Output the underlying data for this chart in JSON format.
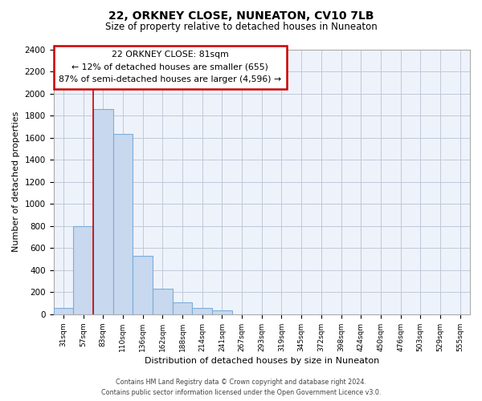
{
  "title": "22, ORKNEY CLOSE, NUNEATON, CV10 7LB",
  "subtitle": "Size of property relative to detached houses in Nuneaton",
  "xlabel": "Distribution of detached houses by size in Nuneaton",
  "ylabel": "Number of detached properties",
  "bin_labels": [
    "31sqm",
    "57sqm",
    "83sqm",
    "110sqm",
    "136sqm",
    "162sqm",
    "188sqm",
    "214sqm",
    "241sqm",
    "267sqm",
    "293sqm",
    "319sqm",
    "345sqm",
    "372sqm",
    "398sqm",
    "424sqm",
    "450sqm",
    "476sqm",
    "503sqm",
    "529sqm",
    "555sqm"
  ],
  "bar_heights": [
    55,
    795,
    1860,
    1635,
    530,
    235,
    110,
    55,
    35,
    0,
    0,
    0,
    0,
    0,
    0,
    0,
    0,
    0,
    0,
    0,
    0
  ],
  "bar_color": "#c8d8ee",
  "bar_edge_color": "#7aaddb",
  "annotation_title": "22 ORKNEY CLOSE: 81sqm",
  "annotation_line1": "← 12% of detached houses are smaller (655)",
  "annotation_line2": "87% of semi-detached houses are larger (4,596) →",
  "annotation_box_color": "#ffffff",
  "annotation_box_edge": "#cc0000",
  "red_line_x": 2,
  "ylim": [
    0,
    2400
  ],
  "yticks": [
    0,
    200,
    400,
    600,
    800,
    1000,
    1200,
    1400,
    1600,
    1800,
    2000,
    2200,
    2400
  ],
  "footer_line1": "Contains HM Land Registry data © Crown copyright and database right 2024.",
  "footer_line2": "Contains public sector information licensed under the Open Government Licence v3.0.",
  "plot_bg_color": "#eef3fb",
  "fig_bg_color": "#ffffff",
  "grid_color": "#c0c8d8"
}
